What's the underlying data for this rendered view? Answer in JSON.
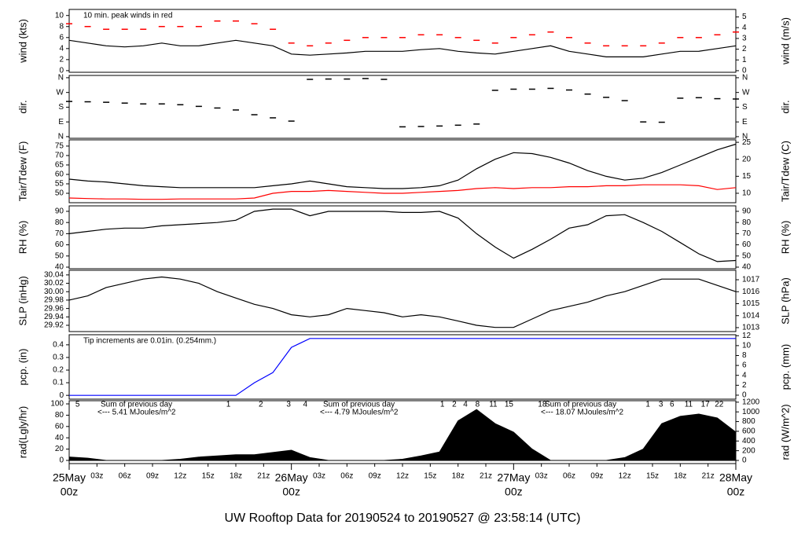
{
  "chart_data": [
    {
      "type": "line",
      "ylabel": "wind (kts)",
      "y2label": "wind (m/s)",
      "annotation": "10 min. peak winds in red",
      "xlim": [
        0,
        72
      ],
      "ylim": [
        -0.3,
        11.1
      ],
      "yticks": [
        0,
        2,
        4,
        6,
        8,
        10
      ],
      "y2lim": [
        -0.15,
        5.7
      ],
      "y2ticks": [
        0,
        1,
        2,
        3,
        4,
        5
      ],
      "x": [
        0,
        2,
        4,
        6,
        8,
        10,
        12,
        14,
        16,
        18,
        20,
        22,
        24,
        26,
        28,
        30,
        32,
        34,
        36,
        38,
        40,
        42,
        44,
        46,
        48,
        50,
        52,
        54,
        56,
        58,
        60,
        62,
        64,
        66,
        68,
        70,
        72
      ],
      "series": [
        {
          "name": "wind",
          "color": "#000000",
          "values": [
            5.5,
            5,
            4.5,
            4.3,
            4.5,
            5,
            4.5,
            4.5,
            5,
            5.5,
            5,
            4.5,
            3,
            2.8,
            3,
            3.2,
            3.5,
            3.5,
            3.5,
            3.8,
            4,
            3.5,
            3.2,
            3,
            3.5,
            4,
            4.5,
            3.5,
            3,
            2.5,
            2.5,
            2.5,
            3,
            3.5,
            3.5,
            4,
            4.5
          ]
        },
        {
          "name": "peak",
          "color": "#ff0000",
          "marker": "dash",
          "values": [
            8.5,
            8,
            7.5,
            7.5,
            7.5,
            8,
            8,
            8,
            9,
            9,
            8.5,
            7.5,
            5,
            4.5,
            5,
            5.5,
            6,
            6,
            6,
            6.5,
            6.5,
            6,
            5.5,
            5,
            6,
            6.5,
            7,
            6,
            5,
            4.5,
            4.5,
            4.5,
            5,
            6,
            6,
            6.5,
            7
          ]
        }
      ]
    },
    {
      "type": "scatter",
      "ylabel": "dir.",
      "y2label": "dir.",
      "xlim": [
        0,
        72
      ],
      "ylim": [
        -10,
        374
      ],
      "yticks": [
        {
          "value": 0,
          "label": "N"
        },
        {
          "value": 90,
          "label": "E"
        },
        {
          "value": 180,
          "label": "S"
        },
        {
          "value": 270,
          "label": "W"
        },
        {
          "value": 360,
          "label": "N"
        }
      ],
      "y2lim": [
        -10,
        374
      ],
      "y2ticks": [
        {
          "value": 0,
          "label": "N"
        },
        {
          "value": 90,
          "label": "E"
        },
        {
          "value": 180,
          "label": "S"
        },
        {
          "value": 270,
          "label": "W"
        },
        {
          "value": 360,
          "label": "N"
        }
      ],
      "x": [
        0,
        2,
        4,
        6,
        8,
        10,
        12,
        14,
        16,
        18,
        20,
        22,
        24,
        26,
        28,
        30,
        32,
        34,
        36,
        38,
        40,
        42,
        44,
        46,
        48,
        50,
        52,
        54,
        56,
        58,
        60,
        62,
        64,
        66,
        68,
        70,
        72
      ],
      "series": [
        {
          "name": "dir",
          "color": "#000000",
          "values": [
            215,
            213,
            210,
            205,
            200,
            200,
            195,
            185,
            175,
            163,
            134,
            115,
            95,
            350,
            352,
            352,
            355,
            350,
            60,
            62,
            65,
            70,
            77,
            283,
            290,
            290,
            295,
            285,
            260,
            240,
            220,
            90,
            88,
            235,
            238,
            232,
            230
          ]
        }
      ]
    },
    {
      "type": "line",
      "ylabel": "Tair/Tdew (F)",
      "y2label": "Tair/Tdew (C)",
      "xlim": [
        0,
        72
      ],
      "ylim": [
        45,
        78.3
      ],
      "yticks": [
        50,
        55,
        60,
        65,
        70,
        75
      ],
      "y2lim": [
        7.22,
        25.72
      ],
      "y2ticks": [
        10,
        15,
        20,
        25
      ],
      "x": [
        0,
        2,
        4,
        6,
        8,
        10,
        12,
        14,
        16,
        18,
        20,
        22,
        24,
        26,
        28,
        30,
        32,
        34,
        36,
        38,
        40,
        42,
        44,
        46,
        48,
        50,
        52,
        54,
        56,
        58,
        60,
        62,
        64,
        66,
        68,
        70,
        72
      ],
      "series": [
        {
          "name": "Tair",
          "color": "#000000",
          "values": [
            57.5,
            56.5,
            56,
            55,
            54,
            53.5,
            53,
            53,
            53,
            53,
            53,
            54,
            55,
            56.5,
            55,
            53.5,
            53,
            52.5,
            52.5,
            53,
            54,
            57,
            63,
            68,
            71.5,
            71,
            69,
            66,
            62,
            59,
            57,
            58,
            61,
            65,
            69,
            73,
            76
          ]
        },
        {
          "name": "Tdew",
          "color": "#ff0000",
          "values": [
            47.5,
            47.2,
            47,
            47,
            46.8,
            46.8,
            47,
            47,
            47,
            47,
            47.5,
            50,
            51,
            51,
            51.5,
            51,
            50.5,
            50,
            50,
            50.5,
            51,
            51.5,
            52.5,
            53,
            52.5,
            53,
            53,
            53.5,
            53.5,
            54,
            54,
            54.5,
            54.5,
            54.5,
            54,
            52,
            53
          ]
        }
      ]
    },
    {
      "type": "line",
      "ylabel": "RH (%)",
      "y2label": "RH (%)",
      "xlim": [
        0,
        72
      ],
      "ylim": [
        38.6,
        94.9
      ],
      "yticks": [
        40,
        50,
        60,
        70,
        80,
        90
      ],
      "y2lim": [
        38.6,
        94.9
      ],
      "y2ticks": [
        40,
        50,
        60,
        70,
        80,
        90
      ],
      "x": [
        0,
        2,
        4,
        6,
        8,
        10,
        12,
        14,
        16,
        18,
        20,
        22,
        24,
        26,
        28,
        30,
        32,
        34,
        36,
        38,
        40,
        42,
        44,
        46,
        48,
        50,
        52,
        54,
        56,
        58,
        60,
        62,
        64,
        66,
        68,
        70,
        72
      ],
      "series": [
        {
          "name": "RH",
          "color": "#000000",
          "values": [
            70,
            72,
            74,
            75,
            75,
            77,
            78,
            79,
            80,
            82,
            90,
            92,
            92,
            86,
            90,
            90,
            90,
            90,
            89,
            89,
            90,
            84,
            70,
            58,
            48,
            56,
            65,
            75,
            78,
            86,
            87,
            80,
            72,
            62,
            52,
            45,
            46
          ]
        }
      ]
    },
    {
      "type": "line",
      "ylabel": "SLP (inHg)",
      "y2label": "SLP (hPa)",
      "xlim": [
        0,
        72
      ],
      "ylim": [
        29.905,
        30.051
      ],
      "yticks": [
        {
          "value": 29.92,
          "label": "29.92"
        },
        {
          "value": 29.94,
          "label": "29.94"
        },
        {
          "value": 29.96,
          "label": "29.96"
        },
        {
          "value": 29.98,
          "label": "29.98"
        },
        {
          "value": 30,
          "label": "30.00"
        },
        {
          "value": 30.02,
          "label": "30.02"
        },
        {
          "value": 30.04,
          "label": "30.04"
        }
      ],
      "y2lim": [
        1012.67,
        1017.79
      ],
      "y2ticks": [
        1013,
        1014,
        1015,
        1016,
        1017
      ],
      "x": [
        0,
        2,
        4,
        6,
        8,
        10,
        12,
        14,
        16,
        18,
        20,
        22,
        24,
        26,
        28,
        30,
        32,
        34,
        36,
        38,
        40,
        42,
        44,
        46,
        48,
        50,
        52,
        54,
        56,
        58,
        60,
        62,
        64,
        66,
        68,
        70,
        72
      ],
      "series": [
        {
          "name": "SLP",
          "color": "#000000",
          "values": [
            29.98,
            29.99,
            30.01,
            30.02,
            30.03,
            30.035,
            30.03,
            30.02,
            30.0,
            29.985,
            29.97,
            29.96,
            29.945,
            29.94,
            29.945,
            29.96,
            29.955,
            29.95,
            29.94,
            29.945,
            29.94,
            29.93,
            29.92,
            29.915,
            29.915,
            29.935,
            29.955,
            29.965,
            29.975,
            29.99,
            30.0,
            30.015,
            30.03,
            30.03,
            30.03,
            30.015,
            30.0
          ]
        }
      ]
    },
    {
      "type": "line",
      "ylabel": "pcp. (in)",
      "y2label": "pcp. (mm)",
      "annotation": "Tip increments are 0.01in. (0.254mm.)",
      "xlim": [
        0,
        72
      ],
      "ylim": [
        -0.03,
        0.48
      ],
      "yticks": [
        0,
        0.1,
        0.2,
        0.3,
        0.4
      ],
      "y2lim": [
        -0.8,
        12.2
      ],
      "y2ticks": [
        0,
        2,
        4,
        6,
        8,
        10,
        12
      ],
      "x": [
        0,
        2,
        4,
        6,
        8,
        10,
        12,
        14,
        16,
        18,
        20,
        22,
        24,
        26,
        28,
        30,
        32,
        34,
        36,
        38,
        40,
        42,
        44,
        46,
        48,
        50,
        52,
        54,
        56,
        58,
        60,
        62,
        64,
        66,
        68,
        70,
        72
      ],
      "series": [
        {
          "name": "pcp",
          "color": "#0000ff",
          "values": [
            0,
            0,
            0,
            0,
            0,
            0,
            0,
            0,
            0,
            0,
            0.1,
            0.18,
            0.38,
            0.45,
            0.45,
            0.45,
            0.45,
            0.45,
            0.45,
            0.45,
            0.45,
            0.45,
            0.45,
            0.45,
            0.45,
            0.45,
            0.45,
            0.45,
            0.45,
            0.45,
            0.45,
            0.45,
            0.45,
            0.45,
            0.45,
            0.45,
            0.45
          ]
        }
      ]
    },
    {
      "type": "area",
      "ylabel": "rad(Lgly/hr)",
      "y2label": "rad (W/m^2)",
      "annotations": [
        "Sum of previous day",
        "<--- 5.41 MJoules/m^2",
        "Sum of previous day",
        "<--- 4.79 MJoules/m^2",
        "Sum of previous day",
        "<--- 18.07 MJoules/m^2"
      ],
      "annotation_color": "#9b30d0",
      "markers": [
        {
          "x": 0.9,
          "label": "5"
        },
        {
          "x": 17.2,
          "label": "1"
        },
        {
          "x": 20.7,
          "label": "2"
        },
        {
          "x": 23.7,
          "label": "3"
        },
        {
          "x": 25.5,
          "label": "4"
        },
        {
          "x": 40.3,
          "label": "1"
        },
        {
          "x": 41.6,
          "label": "2"
        },
        {
          "x": 42.8,
          "label": "4"
        },
        {
          "x": 44.1,
          "label": "8"
        },
        {
          "x": 45.8,
          "label": "11"
        },
        {
          "x": 47.5,
          "label": "15"
        },
        {
          "x": 51.1,
          "label": "18"
        },
        {
          "x": 62.5,
          "label": "1"
        },
        {
          "x": 63.9,
          "label": "3"
        },
        {
          "x": 65.1,
          "label": "6"
        },
        {
          "x": 66.9,
          "label": "11"
        },
        {
          "x": 68.7,
          "label": "17"
        },
        {
          "x": 70.2,
          "label": "22"
        }
      ],
      "xlim": [
        0,
        72
      ],
      "ylim": [
        -5.6,
        105.6
      ],
      "yticks": [
        0,
        20,
        40,
        60,
        80,
        100
      ],
      "y2lim": [
        -65,
        1230
      ],
      "y2ticks": [
        0,
        200,
        400,
        600,
        800,
        1000,
        1200
      ],
      "xticks": [
        {
          "value": 0,
          "label": "00z"
        },
        {
          "value": 3,
          "label": "03z"
        },
        {
          "value": 6,
          "label": "06z"
        },
        {
          "value": 9,
          "label": "09z"
        },
        {
          "value": 12,
          "label": "12z"
        },
        {
          "value": 15,
          "label": "15z"
        },
        {
          "value": 18,
          "label": "18z"
        },
        {
          "value": 21,
          "label": "21z"
        },
        {
          "value": 24,
          "label": "00z"
        },
        {
          "value": 27,
          "label": "03z"
        },
        {
          "value": 30,
          "label": "06z"
        },
        {
          "value": 33,
          "label": "09z"
        },
        {
          "value": 36,
          "label": "12z"
        },
        {
          "value": 39,
          "label": "15z"
        },
        {
          "value": 42,
          "label": "18z"
        },
        {
          "value": 45,
          "label": "21z"
        },
        {
          "value": 48,
          "label": "00z"
        },
        {
          "value": 51,
          "label": "03z"
        },
        {
          "value": 54,
          "label": "06z"
        },
        {
          "value": 57,
          "label": "09z"
        },
        {
          "value": 60,
          "label": "12z"
        },
        {
          "value": 63,
          "label": "15z"
        },
        {
          "value": 66,
          "label": "18z"
        },
        {
          "value": 69,
          "label": "21z"
        },
        {
          "value": 72,
          "label": "00z"
        }
      ],
      "xtick_dates": [
        {
          "value": 0,
          "label": "25May"
        },
        {
          "value": 24,
          "label": "26May"
        },
        {
          "value": 48,
          "label": "27May"
        },
        {
          "value": 72,
          "label": "28May"
        }
      ],
      "date_color": "#ff0000",
      "title": "UW Rooftop Data for 20190524  to  20190527 @ 23:58:14  (UTC)",
      "title_color": "#1a1ae6",
      "x": [
        0,
        2,
        4,
        6,
        8,
        10,
        12,
        14,
        16,
        18,
        20,
        22,
        24,
        26,
        28,
        30,
        32,
        34,
        36,
        38,
        40,
        42,
        44,
        46,
        48,
        50,
        52,
        54,
        56,
        58,
        60,
        62,
        64,
        66,
        68,
        70,
        72
      ],
      "series": [
        {
          "name": "rad",
          "color": "#000000",
          "values": [
            6,
            4,
            0,
            0,
            0,
            0,
            2,
            6,
            8,
            10,
            10,
            14,
            18,
            5,
            0,
            0,
            0,
            0,
            2,
            8,
            15,
            70,
            90,
            65,
            50,
            20,
            0,
            0,
            0,
            0,
            5,
            20,
            65,
            78,
            82,
            75,
            50
          ]
        }
      ]
    }
  ]
}
